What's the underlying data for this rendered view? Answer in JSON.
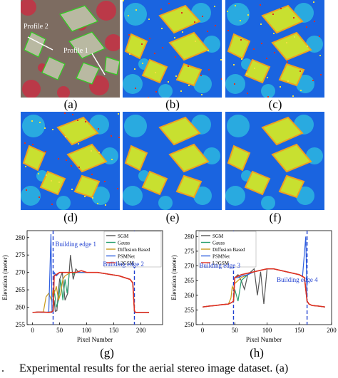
{
  "figure": {
    "labels": [
      "(a)",
      "(b)",
      "(c)",
      "(d)",
      "(e)",
      "(f)",
      "(g)",
      "(h)"
    ],
    "profile_labels": [
      "Profile 2",
      "Profile 1"
    ],
    "caption_prefix": ".",
    "caption": "Experimental results for the aerial stereo image dataset. (a)"
  },
  "colors": {
    "map_background": "#1a64e0",
    "map_background_light": "#2ba0f0",
    "building_roof": "#c8e030",
    "building_edge": "#f0a020",
    "tree_cyan": "#30c8e0",
    "sgm": "#555555",
    "gauss": "#2aa070",
    "diffusion": "#c89a1a",
    "psmnet": "#3060e0",
    "l2gsm": "#e03020",
    "edge_marker": "#2040d0"
  },
  "chart_data": [
    {
      "type": "line",
      "title": "",
      "xlabel": "Pixel Number",
      "ylabel": "Elevation (meter)",
      "xlim": [
        -10,
        240
      ],
      "ylim": [
        255,
        282
      ],
      "xticks": [
        0,
        50,
        100,
        150,
        200
      ],
      "yticks": [
        255,
        260,
        265,
        270,
        275,
        280
      ],
      "legend_position": "top-right",
      "annotations": [
        "Building edge 1",
        "Building edge 2"
      ],
      "edge_lines_x": [
        38,
        188
      ],
      "series": [
        {
          "name": "SGM",
          "x": [
            0,
            10,
            20,
            30,
            35,
            38,
            40,
            42,
            45,
            48,
            50,
            55,
            60,
            65,
            70,
            75,
            80,
            85,
            90,
            100,
            120,
            140,
            160,
            180,
            185,
            188,
            190,
            200,
            215
          ],
          "y": [
            258.5,
            258.6,
            258.5,
            258.6,
            258.7,
            259,
            262,
            258.8,
            259,
            265,
            268,
            270,
            262,
            264,
            275,
            268,
            271,
            270,
            270,
            270,
            270,
            269.5,
            269,
            268,
            267,
            259,
            258.5,
            258.5,
            258.5
          ]
        },
        {
          "name": "Gauss",
          "x": [
            0,
            10,
            20,
            30,
            35,
            38,
            40,
            44,
            48,
            52,
            56,
            60,
            64,
            68,
            72,
            76,
            80,
            90,
            100,
            120,
            140,
            160,
            180,
            185,
            188,
            190,
            200,
            215
          ],
          "y": [
            258.5,
            258.6,
            258.6,
            258.5,
            258.6,
            259,
            265,
            260,
            262,
            268,
            262,
            268,
            264,
            270,
            270,
            269.5,
            270,
            270,
            270,
            270,
            269.5,
            269,
            268,
            267,
            259,
            258.5,
            258.5,
            258.5
          ]
        },
        {
          "name": "Diffusion Based",
          "x": [
            0,
            10,
            20,
            25,
            30,
            35,
            38,
            40,
            44,
            48,
            52,
            56,
            60,
            70,
            80,
            90,
            100,
            120,
            140,
            160,
            180,
            185,
            188,
            190,
            200,
            215
          ],
          "y": [
            258.5,
            258.6,
            258.6,
            263,
            264,
            262,
            265,
            264,
            266,
            262,
            264,
            268,
            269,
            270,
            270,
            270,
            270,
            270,
            269.5,
            269,
            268,
            267,
            259,
            258.5,
            258.5,
            258.5
          ]
        },
        {
          "name": "PSMNet",
          "x": [
            0,
            10,
            20,
            30,
            34,
            36,
            38,
            40,
            44,
            50,
            60,
            70,
            80,
            90,
            100,
            120,
            140,
            160,
            180,
            185,
            188,
            190,
            200,
            215
          ],
          "y": [
            258.5,
            258.6,
            258.5,
            258.6,
            281,
            258.6,
            259,
            270,
            269,
            270,
            270,
            270,
            270,
            270,
            270,
            270,
            269.5,
            269,
            268,
            267,
            259,
            258.5,
            258.5,
            258.5
          ]
        },
        {
          "name": "L2GSM",
          "x": [
            0,
            10,
            20,
            30,
            35,
            38,
            40,
            45,
            50,
            60,
            70,
            80,
            90,
            100,
            110,
            120,
            140,
            160,
            180,
            185,
            188,
            190,
            200,
            215
          ],
          "y": [
            258.5,
            258.6,
            258.6,
            258.5,
            258.6,
            259,
            269,
            269.5,
            270,
            270,
            270,
            270,
            270.5,
            270,
            270,
            270,
            269.5,
            269,
            268,
            267,
            259,
            258.5,
            258.5,
            258.5
          ]
        }
      ]
    },
    {
      "type": "line",
      "title": "",
      "xlabel": "Pixel Number",
      "ylabel": "Elevation (meter)",
      "xlim": [
        -10,
        200
      ],
      "ylim": [
        250,
        282
      ],
      "xticks": [
        0,
        50,
        100,
        150,
        200
      ],
      "yticks": [
        250,
        255,
        260,
        265,
        270,
        275,
        280
      ],
      "legend_position": "top-left",
      "annotations": [
        "Building edge 3",
        "Building edge 4"
      ],
      "edge_lines_x": [
        48,
        162
      ],
      "series": [
        {
          "name": "SGM",
          "x": [
            0,
            10,
            20,
            30,
            40,
            45,
            48,
            50,
            55,
            60,
            65,
            70,
            75,
            80,
            85,
            90,
            95,
            100,
            110,
            120,
            130,
            140,
            150,
            158,
            162,
            165,
            170,
            180,
            190
          ],
          "y": [
            256,
            256.3,
            256.5,
            256.8,
            257,
            257.5,
            258,
            266,
            267,
            265,
            262,
            267,
            268,
            269,
            260,
            268,
            257,
            269,
            269,
            268.5,
            268,
            267.5,
            267,
            266,
            258,
            257,
            256.5,
            256.3,
            256
          ]
        },
        {
          "name": "Gauss",
          "x": [
            0,
            10,
            20,
            30,
            40,
            45,
            48,
            50,
            55,
            60,
            65,
            70,
            80,
            90,
            100,
            110,
            120,
            130,
            140,
            150,
            158,
            162,
            165,
            170,
            180,
            190
          ],
          "y": [
            256,
            256.3,
            256.5,
            256.8,
            257,
            257.5,
            258,
            262,
            258,
            265,
            266,
            267,
            268,
            268.5,
            269,
            269,
            268.5,
            268,
            267.5,
            267,
            266,
            258,
            257,
            256.5,
            256.3,
            256
          ]
        },
        {
          "name": "Diffusion Based",
          "x": [
            0,
            10,
            20,
            30,
            40,
            44,
            46,
            48,
            50,
            55,
            60,
            70,
            80,
            90,
            100,
            110,
            120,
            130,
            140,
            150,
            158,
            162,
            165,
            170,
            180,
            190
          ],
          "y": [
            256,
            256.3,
            256.5,
            256.8,
            257,
            259,
            263,
            262,
            264,
            265,
            266,
            267,
            268,
            268.5,
            269,
            269,
            268.5,
            268,
            267.5,
            267,
            266,
            258,
            257,
            256.5,
            256.3,
            256
          ]
        },
        {
          "name": "PSMNet",
          "x": [
            0,
            10,
            20,
            30,
            40,
            45,
            48,
            50,
            55,
            60,
            70,
            80,
            90,
            100,
            110,
            120,
            130,
            140,
            150,
            155,
            160,
            162,
            165,
            170,
            180,
            190
          ],
          "y": [
            256,
            256.3,
            256.5,
            256.8,
            257,
            257.5,
            258,
            266,
            266,
            266.5,
            267,
            268,
            268.5,
            269,
            269,
            268.5,
            268,
            267.5,
            267,
            266.5,
            280,
            258,
            257,
            256.5,
            256.3,
            256
          ]
        },
        {
          "name": "L2GSM",
          "x": [
            0,
            10,
            20,
            30,
            40,
            45,
            48,
            50,
            55,
            60,
            70,
            80,
            90,
            100,
            110,
            120,
            130,
            140,
            150,
            158,
            162,
            165,
            170,
            180,
            190
          ],
          "y": [
            256,
            256.3,
            256.5,
            256.8,
            257,
            257.5,
            258,
            266,
            266.5,
            267,
            267.5,
            268,
            268.5,
            269,
            269,
            268.5,
            268,
            267.5,
            267,
            266,
            258,
            257,
            256.5,
            256.3,
            256
          ]
        }
      ]
    }
  ]
}
